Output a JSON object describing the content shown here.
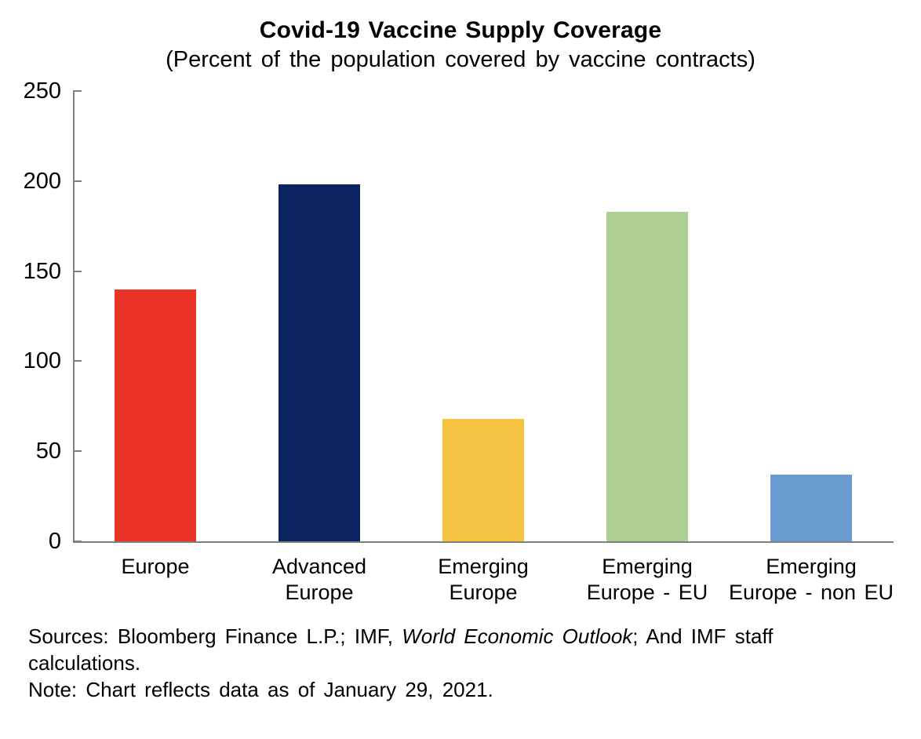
{
  "title": "Covid-19 Vaccine Supply Coverage",
  "subtitle": "(Percent of the population covered by vaccine contracts)",
  "chart_data": {
    "type": "bar",
    "title": "Covid-19 Vaccine Supply Coverage",
    "subtitle": "(Percent of the population covered by vaccine contracts)",
    "categories": [
      "Europe",
      "Advanced Europe",
      "Emerging Europe",
      "Emerging Europe - EU",
      "Emerging Europe - non EU"
    ],
    "category_lines": [
      [
        "Europe"
      ],
      [
        "Advanced",
        "Europe"
      ],
      [
        "Emerging",
        "Europe"
      ],
      [
        "Emerging",
        "Europe - EU"
      ],
      [
        "Emerging",
        "Europe - non EU"
      ]
    ],
    "values": [
      140,
      198,
      68,
      183,
      37
    ],
    "bar_colors": [
      "#E93326",
      "#0C2362",
      "#F5C242",
      "#AFCE94",
      "#699BD1"
    ],
    "ylim": [
      0,
      250
    ],
    "yticks": [
      0,
      50,
      100,
      150,
      200,
      250
    ],
    "grid": false,
    "legend": "none",
    "axis_color": "#808080",
    "text_color": "#000000"
  },
  "footer": {
    "sources_prefix": "Sources: Bloomberg Finance L.P.; IMF, ",
    "sources_italic": "World Economic Outlook",
    "sources_suffix": "; And IMF staff calculations.",
    "note": "Note: Chart reflects data as of January 29, 2021."
  }
}
